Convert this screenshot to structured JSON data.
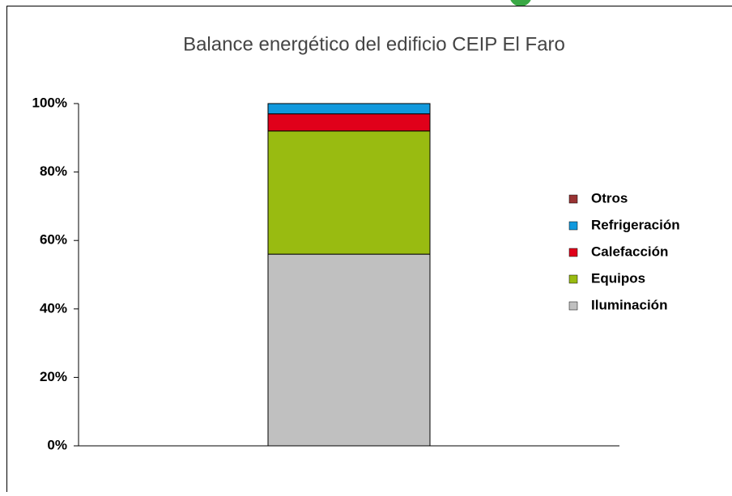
{
  "chart_data": {
    "type": "stacked_bar",
    "title": "Balance energético del edificio CEIP El Faro",
    "categories": [
      null
    ],
    "series": [
      {
        "name": "Iluminación",
        "color": "#c0c0c0",
        "values": [
          56
        ]
      },
      {
        "name": "Equipos",
        "color": "#99bb11",
        "values": [
          36
        ]
      },
      {
        "name": "Calefacción",
        "color": "#e0001a",
        "values": [
          5
        ]
      },
      {
        "name": "Refrigeración",
        "color": "#1199dd",
        "values": [
          3
        ]
      },
      {
        "name": "Otros",
        "color": "#993333",
        "values": [
          0
        ]
      }
    ],
    "ylim": [
      0,
      100
    ],
    "yticks": [
      {
        "value": 0,
        "label": "0%"
      },
      {
        "value": 20,
        "label": "20%"
      },
      {
        "value": 40,
        "label": "40%"
      },
      {
        "value": 60,
        "label": "60%"
      },
      {
        "value": 80,
        "label": "80%"
      },
      {
        "value": 100,
        "label": "100%"
      }
    ],
    "legend": "right"
  }
}
